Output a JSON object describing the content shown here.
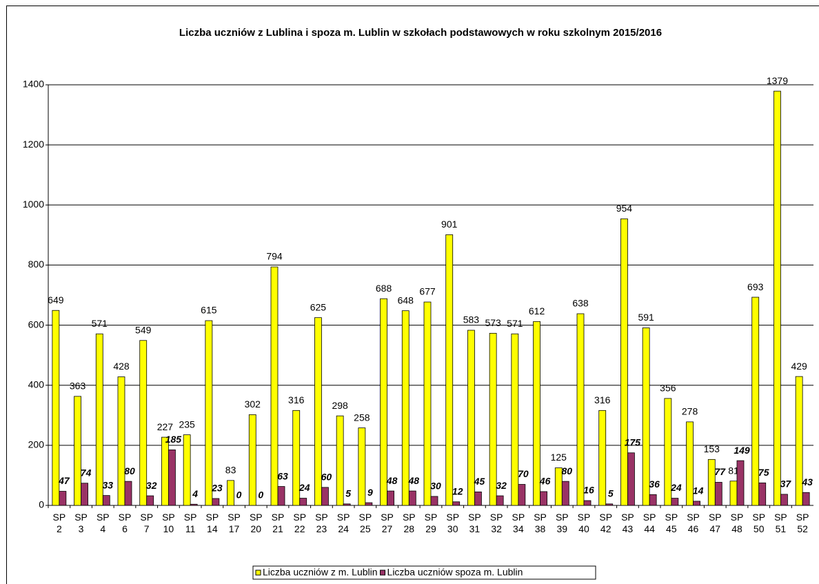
{
  "chart_data": {
    "type": "bar",
    "title": "Liczba uczniów z Lublina i spoza m. Lublin w szkołach podstawowych w roku szkolnym 2015/2016",
    "categories": [
      "SP 2",
      "SP 3",
      "SP 4",
      "SP 6",
      "SP 7",
      "SP 10",
      "SP 11",
      "SP 14",
      "SP 17",
      "SP 20",
      "SP 21",
      "SP 22",
      "SP 23",
      "SP 24",
      "SP 25",
      "SP 27",
      "SP 28",
      "SP 29",
      "SP 30",
      "SP 31",
      "SP 32",
      "SP 34",
      "SP 38",
      "SP 39",
      "SP 40",
      "SP 42",
      "SP 43",
      "SP 44",
      "SP 45",
      "SP 46",
      "SP 47",
      "SP 48",
      "SP 50",
      "SP 51",
      "SP 52"
    ],
    "series": [
      {
        "name": "Liczba uczniów z m. Lublin",
        "color": "#ffff00",
        "values": [
          649,
          363,
          571,
          428,
          549,
          227,
          235,
          615,
          83,
          302,
          794,
          316,
          625,
          298,
          258,
          688,
          648,
          677,
          901,
          583,
          573,
          571,
          612,
          125,
          638,
          316,
          954,
          591,
          356,
          278,
          153,
          81,
          693,
          1379,
          429
        ]
      },
      {
        "name": "Liczba uczniów spoza m. Lublin",
        "color": "#993366",
        "values": [
          47,
          74,
          33,
          80,
          32,
          185,
          4,
          23,
          0,
          0,
          63,
          24,
          60,
          5,
          9,
          48,
          48,
          30,
          12,
          45,
          32,
          70,
          46,
          80,
          16,
          5,
          175,
          36,
          24,
          14,
          77,
          149,
          75,
          37,
          43
        ]
      }
    ],
    "ylim": [
      0,
      1400
    ],
    "yticks": [
      0,
      200,
      400,
      600,
      800,
      1000,
      1200,
      1400
    ],
    "grid": true,
    "legend": "bottom"
  }
}
